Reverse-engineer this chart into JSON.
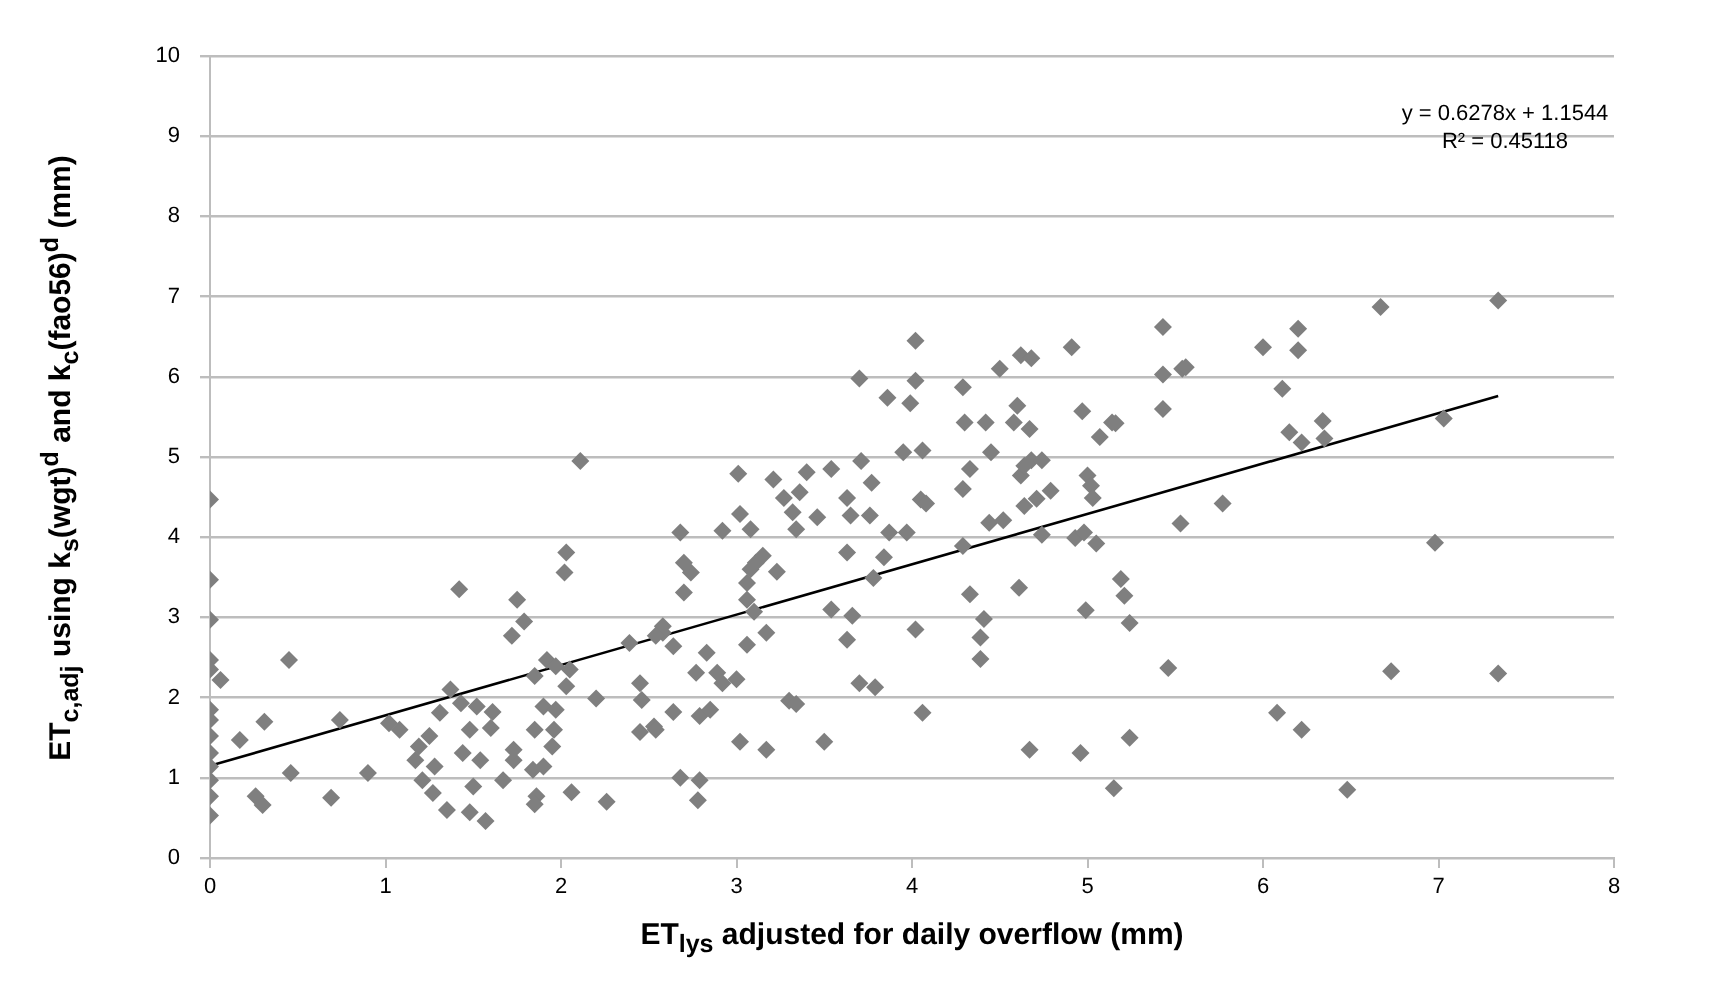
{
  "chart_data": {
    "type": "scatter",
    "xlabel": "ET$_{lys}$ adjusted for daily overflow (mm)",
    "ylabel": "ET$_{c,adj}$ using k$_{s}$(wgt)$^{d}$ and k$_{c}$(fao56)$^{d}$ (mm)",
    "annotations": [
      "y = 0.6278x + 1.1544",
      "R² = 0.45118"
    ],
    "xlim": [
      0,
      8
    ],
    "xticks": [
      0,
      1,
      2,
      3,
      4,
      5,
      6,
      7,
      8
    ],
    "ylim": [
      0,
      10
    ],
    "yticks": [
      0,
      1,
      2,
      3,
      4,
      5,
      6,
      7,
      8,
      9,
      10
    ],
    "grid": "y",
    "series": [
      {
        "marker": "diamond",
        "color": "#7f7f7f",
        "x": [
          0,
          0,
          0,
          0,
          0,
          0,
          0,
          0,
          0,
          0,
          0,
          0,
          0,
          0.06,
          0.17,
          0.45,
          0.31,
          0.26,
          0.3,
          0.46,
          0.69,
          0.74,
          0.9,
          1.02,
          1.08,
          1.19,
          1.17,
          1.21,
          1.27,
          1.35,
          1.28,
          1.25,
          1.31,
          1.37,
          1.42,
          1.43,
          1.48,
          1.44,
          1.5,
          1.48,
          1.57,
          1.54,
          1.52,
          1.61,
          1.6,
          1.67,
          1.73,
          1.73,
          1.72,
          1.75,
          1.79,
          1.85,
          1.9,
          1.85,
          1.84,
          1.86,
          1.85,
          1.9,
          1.92,
          1.97,
          1.97,
          1.96,
          1.95,
          2.02,
          2.03,
          2.05,
          2.03,
          2.06,
          2.11,
          2.2,
          2.26,
          2.39,
          2.45,
          2.46,
          2.45,
          2.53,
          2.58,
          2.58,
          2.54,
          2.64,
          2.54,
          2.68,
          2.7,
          2.74,
          2.7,
          2.64,
          2.77,
          2.83,
          2.89,
          2.92,
          3.0,
          2.79,
          2.85,
          2.68,
          2.79,
          2.78,
          2.92,
          3.01,
          3.02,
          3.08,
          3.06,
          3.08,
          3.11,
          3.15,
          3.06,
          3.1,
          3.23,
          3.17,
          3.06,
          3.02,
          3.17,
          3.21,
          3.27,
          3.32,
          3.36,
          3.4,
          3.34,
          3.46,
          3.54,
          3.3,
          3.34,
          3.5,
          3.54,
          3.63,
          3.63,
          3.65,
          3.63,
          3.66,
          3.7,
          3.71,
          3.77,
          3.76,
          3.7,
          3.79,
          3.84,
          3.78,
          3.86,
          3.87,
          3.97,
          3.95,
          4.02,
          4.02,
          3.99,
          4.06,
          4.05,
          4.08,
          4.02,
          4.06,
          4.29,
          4.3,
          4.42,
          4.29,
          4.33,
          4.29,
          4.33,
          4.41,
          4.39,
          4.39,
          4.45,
          4.5,
          4.44,
          4.52,
          4.6,
          4.58,
          4.67,
          4.62,
          4.68,
          4.62,
          4.64,
          4.68,
          4.74,
          4.64,
          4.71,
          4.79,
          4.74,
          4.61,
          4.67,
          4.91,
          4.97,
          4.93,
          4.98,
          5.05,
          5.0,
          5.02,
          5.03,
          5.07,
          5.14,
          4.99,
          4.96,
          5.19,
          5.21,
          5.24,
          5.24,
          5.15,
          5.16,
          5.43,
          5.43,
          5.54,
          5.56,
          5.43,
          5.53,
          5.46,
          5.77,
          6.0,
          6.11,
          6.15,
          6.22,
          6.2,
          6.2,
          6.34,
          6.35,
          6.08,
          6.22,
          6.48,
          6.67,
          6.73,
          7.03,
          6.98,
          7.34,
          7.34
        ],
        "values": [
          4.47,
          3.47,
          2.97,
          2.47,
          2.35,
          1.85,
          1.72,
          1.52,
          1.31,
          1.14,
          0.97,
          0.77,
          0.53,
          2.22,
          1.47,
          2.47,
          1.7,
          0.77,
          0.66,
          1.06,
          0.75,
          1.72,
          1.06,
          1.68,
          1.6,
          1.39,
          1.22,
          0.97,
          0.81,
          0.6,
          1.14,
          1.52,
          1.81,
          2.1,
          3.35,
          1.93,
          1.6,
          1.31,
          0.89,
          0.57,
          0.46,
          1.22,
          1.89,
          1.82,
          1.62,
          0.97,
          1.22,
          1.35,
          2.77,
          3.22,
          2.95,
          2.27,
          1.89,
          1.6,
          1.1,
          0.77,
          0.67,
          1.14,
          2.47,
          2.39,
          1.85,
          1.6,
          1.39,
          3.56,
          3.81,
          2.35,
          2.14,
          0.82,
          4.95,
          1.99,
          0.7,
          2.68,
          2.18,
          1.97,
          1.57,
          1.64,
          2.81,
          2.89,
          2.77,
          2.64,
          1.6,
          4.06,
          3.68,
          3.56,
          3.31,
          1.82,
          2.31,
          2.56,
          2.31,
          2.18,
          2.23,
          1.77,
          1.85,
          1.0,
          0.97,
          0.72,
          4.08,
          4.79,
          4.29,
          4.1,
          3.43,
          3.6,
          3.68,
          3.77,
          3.22,
          3.07,
          3.57,
          2.81,
          2.66,
          1.45,
          1.35,
          4.72,
          4.49,
          4.31,
          4.56,
          4.81,
          4.1,
          4.25,
          4.85,
          1.96,
          1.92,
          1.45,
          3.1,
          3.81,
          4.49,
          4.27,
          2.72,
          3.02,
          5.98,
          4.95,
          4.68,
          4.27,
          2.18,
          2.13,
          3.75,
          3.49,
          5.74,
          4.06,
          4.06,
          5.06,
          6.45,
          5.95,
          5.67,
          5.08,
          4.47,
          4.42,
          2.85,
          1.81,
          5.87,
          5.43,
          5.43,
          4.6,
          4.85,
          3.89,
          3.29,
          2.98,
          2.75,
          2.48,
          5.06,
          6.1,
          4.18,
          4.21,
          5.64,
          5.43,
          5.35,
          6.27,
          6.23,
          4.77,
          4.89,
          4.96,
          4.96,
          4.39,
          4.48,
          4.58,
          4.03,
          3.37,
          1.35,
          6.37,
          5.57,
          3.99,
          4.06,
          3.92,
          4.77,
          4.64,
          4.49,
          5.25,
          5.43,
          3.09,
          1.31,
          3.48,
          3.27,
          2.93,
          1.5,
          0.87,
          5.42,
          6.62,
          6.03,
          6.1,
          6.12,
          5.6,
          4.17,
          2.37,
          4.42,
          6.37,
          5.85,
          5.31,
          5.18,
          6.6,
          6.33,
          5.45,
          5.23,
          1.81,
          1.6,
          0.85,
          6.87,
          2.33,
          5.48,
          3.93,
          6.95,
          2.3
        ]
      },
      {
        "type": "line",
        "marker": "none",
        "color": "#000000",
        "x": [
          0,
          7.34
        ],
        "values": [
          1.15,
          5.76
        ]
      }
    ]
  }
}
